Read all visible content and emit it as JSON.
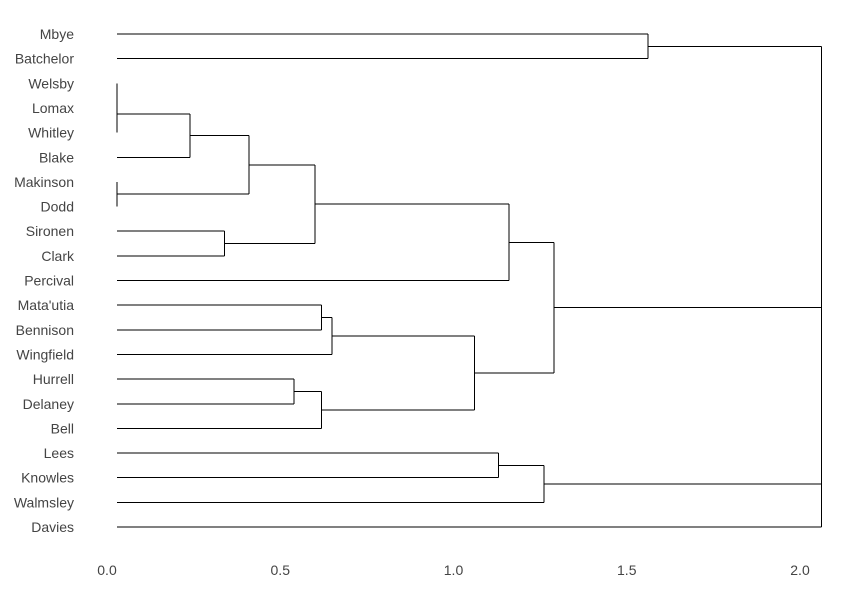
{
  "chart_data": {
    "type": "dendrogram",
    "orientation": "horizontal",
    "leaves": [
      "Mbye",
      "Batchelor",
      "Welsby",
      "Lomax",
      "Whitley",
      "Blake",
      "Makinson",
      "Dodd",
      "Sironen",
      "Clark",
      "Percival",
      "Mata'utia",
      "Bennison",
      "Wingfield",
      "Hurrell",
      "Delaney",
      "Bell",
      "Lees",
      "Knowles",
      "Walmsley",
      "Davies"
    ],
    "merges": [
      {
        "left": 2,
        "right": 3,
        "height": 0.0
      },
      {
        "left": 6,
        "right": 7,
        "height": 0.0
      },
      {
        "left": 0,
        "right": 1,
        "height": 1.53
      },
      {
        "left": "c0",
        "right": 4,
        "height": 0.0
      },
      {
        "left": "c3",
        "right": 5,
        "height": 0.21
      },
      {
        "left": 8,
        "right": 9,
        "height": 0.31
      },
      {
        "left": "c4",
        "right": "c1",
        "height": 0.38
      },
      {
        "left": "c6",
        "right": "c5",
        "height": 0.57
      },
      {
        "left": "c7",
        "right": 10,
        "height": 1.13
      },
      {
        "left": 11,
        "right": 12,
        "height": 0.59
      },
      {
        "left": "c9",
        "right": 13,
        "height": 0.62
      },
      {
        "left": 14,
        "right": 15,
        "height": 0.51
      },
      {
        "left": "c11",
        "right": 16,
        "height": 0.59
      },
      {
        "left": "c10",
        "right": "c12",
        "height": 1.03
      },
      {
        "left": "c8",
        "right": "c13",
        "height": 1.26
      },
      {
        "left": 17,
        "right": 18,
        "height": 1.1
      },
      {
        "left": "c15",
        "right": 19,
        "height": 1.23
      },
      {
        "left": "c16",
        "right": 20,
        "height": 2.03
      },
      {
        "left": "c2",
        "right": "c14",
        "height": 2.03
      },
      {
        "left": "c18",
        "right": "c17",
        "height": 2.03
      }
    ],
    "x_ticks": [
      0.0,
      0.5,
      1.0,
      1.5,
      2.0
    ],
    "x_tick_labels": [
      "0.0",
      "0.5",
      "1.0",
      "1.5",
      "2.0"
    ],
    "xlim": [
      0,
      2.0
    ],
    "title": "",
    "xlabel": "",
    "ylabel": "",
    "grid": false,
    "line_color": "#000000",
    "label_color": "#444444"
  }
}
